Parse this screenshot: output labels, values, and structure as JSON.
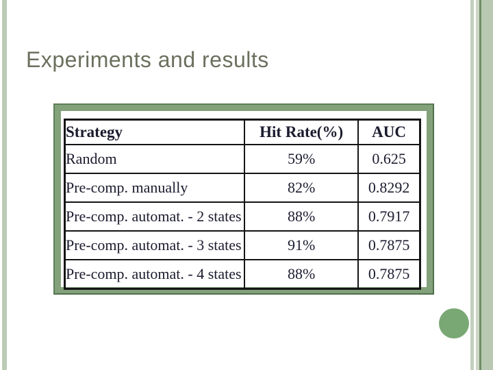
{
  "slide": {
    "title": "Experiments and results"
  },
  "table": {
    "columns": [
      "Strategy",
      "Hit Rate(%)",
      "AUC"
    ],
    "rows": [
      [
        "Random",
        "59%",
        "0.625"
      ],
      [
        "Pre-comp. manually",
        "82%",
        "0.8292"
      ],
      [
        "Pre-comp. automat. - 2 states",
        "88%",
        "0.7917"
      ],
      [
        "Pre-comp. automat. - 3 states",
        "91%",
        "0.7875"
      ],
      [
        "Pre-comp. automat. - 4 states",
        "88%",
        "0.7875"
      ]
    ]
  },
  "colors": {
    "accent_green_circle": "#7aa874",
    "stripe_light_green": "#bccbb6",
    "stripe_dark_line": "#6d8f65",
    "frame_green": "#83a17b",
    "frame_outline": "#5d7f56",
    "title_text": "#6b705e",
    "table_text": "#1b1b2f",
    "background": "#ffffff"
  }
}
